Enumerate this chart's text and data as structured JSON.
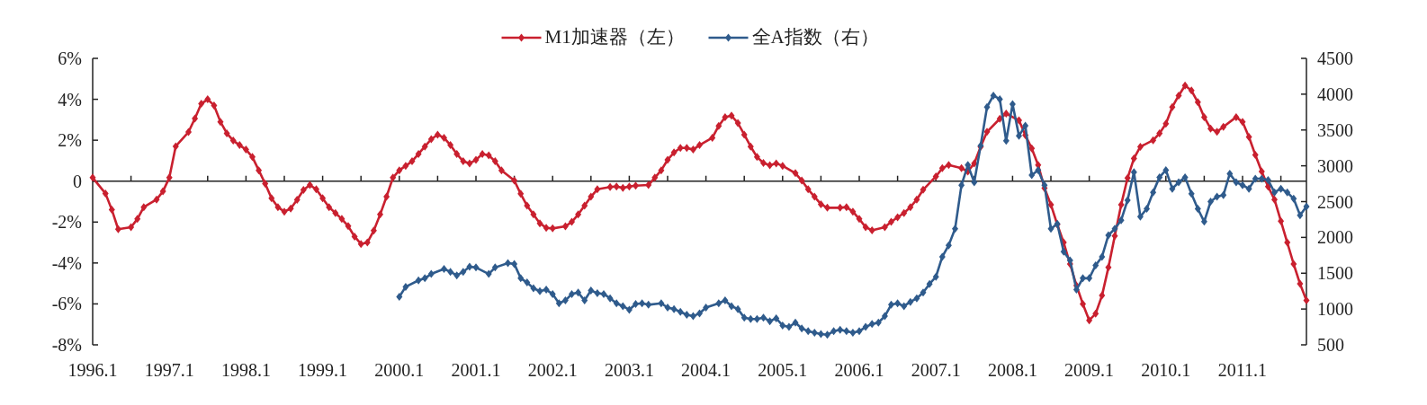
{
  "chart_data": {
    "type": "line",
    "legend": "top",
    "marker": "diamond",
    "line_style": "solid",
    "xlim": [
      "1996-01",
      "2011-11"
    ],
    "xticks": [
      {
        "value": "1996-01",
        "label": "1996.1"
      },
      {
        "value": "1996-07",
        "label": null
      },
      {
        "value": "1997-01",
        "label": "1997.1"
      },
      {
        "value": "1997-07",
        "label": null
      },
      {
        "value": "1998-01",
        "label": "1998.1"
      },
      {
        "value": "1998-07",
        "label": null
      },
      {
        "value": "1999-01",
        "label": "1999.1"
      },
      {
        "value": "1999-07",
        "label": null
      },
      {
        "value": "2000-01",
        "label": "2000.1"
      },
      {
        "value": "2000-07",
        "label": null
      },
      {
        "value": "2001-01",
        "label": "2001.1"
      },
      {
        "value": "2001-07",
        "label": null
      },
      {
        "value": "2002-01",
        "label": "2002.1"
      },
      {
        "value": "2002-07",
        "label": null
      },
      {
        "value": "2003-01",
        "label": "2003.1"
      },
      {
        "value": "2003-07",
        "label": null
      },
      {
        "value": "2004-01",
        "label": "2004.1"
      },
      {
        "value": "2004-07",
        "label": null
      },
      {
        "value": "2005-01",
        "label": "2005.1"
      },
      {
        "value": "2005-07",
        "label": null
      },
      {
        "value": "2006-01",
        "label": "2006.1"
      },
      {
        "value": "2006-07",
        "label": null
      },
      {
        "value": "2007-01",
        "label": "2007.1"
      },
      {
        "value": "2007-07",
        "label": null
      },
      {
        "value": "2008-01",
        "label": "2008.1"
      },
      {
        "value": "2008-07",
        "label": null
      },
      {
        "value": "2009-01",
        "label": "2009.1"
      },
      {
        "value": "2009-07",
        "label": null
      },
      {
        "value": "2010-01",
        "label": "2010.1"
      },
      {
        "value": "2010-07",
        "label": null
      },
      {
        "value": "2011-01",
        "label": "2011.1"
      },
      {
        "value": "2011-07",
        "label": null
      }
    ],
    "ylim": [
      -8,
      6
    ],
    "yticks": [
      {
        "value": -8,
        "label": "-8%"
      },
      {
        "value": -6,
        "label": "-6%"
      },
      {
        "value": -4,
        "label": "-4%"
      },
      {
        "value": -2,
        "label": "-2%"
      },
      0,
      {
        "value": 2,
        "label": "2%"
      },
      {
        "value": 4,
        "label": "4%"
      },
      {
        "value": 6,
        "label": "6%"
      }
    ],
    "y2lim": [
      500,
      4500
    ],
    "y2ticks": [
      500,
      1000,
      1500,
      2000,
      2500,
      3000,
      3500,
      4000,
      4500
    ],
    "series": [
      {
        "name": "M1加速器（左）",
        "color": "#c9202f",
        "x": [
          "1996-01",
          "1996-03",
          "1996-04",
          "1996-05",
          "1996-07",
          "1996-08",
          "1996-09",
          "1996-11",
          "1996-12",
          "1997-01",
          "1997-02",
          "1997-04",
          "1997-05",
          "1997-06",
          "1997-07",
          "1997-08",
          "1997-09",
          "1997-10",
          "1997-11",
          "1997-12",
          "1998-01",
          "1998-02",
          "1998-03",
          "1998-04",
          "1998-05",
          "1998-06",
          "1998-07",
          "1998-08",
          "1998-09",
          "1998-10",
          "1998-11",
          "1998-12",
          "1999-01",
          "1999-02",
          "1999-03",
          "1999-04",
          "1999-05",
          "1999-06",
          "1999-07",
          "1999-08",
          "1999-09",
          "1999-10",
          "1999-11",
          "1999-12",
          "2000-01",
          "2000-02",
          "2000-03",
          "2000-04",
          "2000-05",
          "2000-06",
          "2000-07",
          "2000-08",
          "2000-09",
          "2000-10",
          "2000-11",
          "2000-12",
          "2001-01",
          "2001-02",
          "2001-03",
          "2001-04",
          "2001-05",
          "2001-07",
          "2001-08",
          "2001-09",
          "2001-10",
          "2001-11",
          "2001-12",
          "2002-01",
          "2002-03",
          "2002-04",
          "2002-05",
          "2002-06",
          "2002-07",
          "2002-08",
          "2002-10",
          "2002-11",
          "2002-12",
          "2003-01",
          "2003-02",
          "2003-04",
          "2003-05",
          "2003-06",
          "2003-07",
          "2003-08",
          "2003-09",
          "2003-10",
          "2003-11",
          "2003-12",
          "2004-02",
          "2004-03",
          "2004-04",
          "2004-05",
          "2004-06",
          "2004-07",
          "2004-08",
          "2004-09",
          "2004-10",
          "2004-11",
          "2004-12",
          "2005-01",
          "2005-03",
          "2005-04",
          "2005-05",
          "2005-06",
          "2005-07",
          "2005-08",
          "2005-10",
          "2005-11",
          "2005-12",
          "2006-01",
          "2006-02",
          "2006-03",
          "2006-05",
          "2006-06",
          "2006-07",
          "2006-08",
          "2006-09",
          "2006-10",
          "2006-11",
          "2007-01",
          "2007-02",
          "2007-03",
          "2007-05",
          "2007-06",
          "2007-07",
          "2007-08",
          "2007-09",
          "2007-11",
          "2007-12",
          "2008-02",
          "2008-03",
          "2008-04",
          "2008-05",
          "2008-06",
          "2008-07",
          "2008-08",
          "2008-09",
          "2008-10",
          "2008-11",
          "2008-12",
          "2009-01",
          "2009-02",
          "2009-03",
          "2009-04",
          "2009-05",
          "2009-06",
          "2009-07",
          "2009-08",
          "2009-09",
          "2009-11",
          "2009-12",
          "2010-01",
          "2010-02",
          "2010-03",
          "2010-04",
          "2010-05",
          "2010-06",
          "2010-07",
          "2010-08",
          "2010-09",
          "2010-10",
          "2010-12",
          "2011-01",
          "2011-02",
          "2011-03",
          "2011-04",
          "2011-05",
          "2011-06",
          "2011-07",
          "2011-08",
          "2011-09",
          "2011-10",
          "2011-11"
        ],
        "values": [
          0.17,
          -0.6,
          -1.4,
          -2.35,
          -2.25,
          -1.85,
          -1.27,
          -0.9,
          -0.5,
          0.17,
          1.7,
          2.4,
          3.06,
          3.78,
          4.0,
          3.7,
          2.9,
          2.34,
          1.98,
          1.76,
          1.54,
          1.18,
          0.53,
          -0.12,
          -0.84,
          -1.27,
          -1.49,
          -1.34,
          -0.91,
          -0.43,
          -0.19,
          -0.4,
          -0.84,
          -1.27,
          -1.56,
          -1.85,
          -2.2,
          -2.71,
          -3.07,
          -3.0,
          -2.42,
          -1.63,
          -0.76,
          0.17,
          0.53,
          0.75,
          0.97,
          1.33,
          1.69,
          2.05,
          2.27,
          2.12,
          1.76,
          1.33,
          0.97,
          0.87,
          1.04,
          1.33,
          1.26,
          0.97,
          0.53,
          0.03,
          -0.62,
          -1.2,
          -1.63,
          -2.06,
          -2.28,
          -2.31,
          -2.21,
          -1.99,
          -1.63,
          -1.2,
          -0.76,
          -0.4,
          -0.29,
          -0.26,
          -0.33,
          -0.26,
          -0.22,
          -0.19,
          0.17,
          0.53,
          1.04,
          1.4,
          1.62,
          1.62,
          1.54,
          1.76,
          2.12,
          2.7,
          3.13,
          3.2,
          2.84,
          2.27,
          1.69,
          1.18,
          0.89,
          0.78,
          0.87,
          0.75,
          0.39,
          0.03,
          -0.4,
          -0.76,
          -1.13,
          -1.3,
          -1.3,
          -1.27,
          -1.49,
          -1.85,
          -2.25,
          -2.4,
          -2.25,
          -1.99,
          -1.77,
          -1.56,
          -1.27,
          -0.9,
          -0.42,
          0.23,
          0.63,
          0.79,
          0.63,
          0.47,
          0.87,
          1.68,
          2.41,
          3.05,
          3.3,
          2.97,
          2.25,
          1.6,
          0.79,
          -0.34,
          -1.15,
          -2.12,
          -3.0,
          -4.05,
          -5.1,
          -6.0,
          -6.8,
          -6.48,
          -5.59,
          -4.22,
          -2.68,
          -1.15,
          0.15,
          1.11,
          1.68,
          2.0,
          2.33,
          2.81,
          3.62,
          4.18,
          4.67,
          4.43,
          3.86,
          3.13,
          2.57,
          2.41,
          2.65,
          3.13,
          2.89,
          2.16,
          1.28,
          0.47,
          -0.26,
          -0.9,
          -1.95,
          -3.0,
          -4.05,
          -5.02,
          -5.83
        ]
      },
      {
        "name": "全A指数（右）",
        "color": "#2f5b8c",
        "axis": "y2",
        "x": [
          "2000-01",
          "2000-02",
          "2000-04",
          "2000-05",
          "2000-06",
          "2000-08",
          "2000-09",
          "2000-10",
          "2000-11",
          "2000-12",
          "2001-01",
          "2001-03",
          "2001-04",
          "2001-06",
          "2001-07",
          "2001-08",
          "2001-09",
          "2001-10",
          "2001-11",
          "2001-12",
          "2002-01",
          "2002-02",
          "2002-03",
          "2002-04",
          "2002-05",
          "2002-06",
          "2002-07",
          "2002-08",
          "2002-09",
          "2002-10",
          "2002-11",
          "2002-12",
          "2003-01",
          "2003-02",
          "2003-03",
          "2003-04",
          "2003-06",
          "2003-07",
          "2003-08",
          "2003-09",
          "2003-10",
          "2003-11",
          "2003-12",
          "2004-01",
          "2004-03",
          "2004-04",
          "2004-05",
          "2004-06",
          "2004-07",
          "2004-08",
          "2004-09",
          "2004-10",
          "2004-11",
          "2004-12",
          "2005-01",
          "2005-02",
          "2005-03",
          "2005-04",
          "2005-05",
          "2005-06",
          "2005-07",
          "2005-08",
          "2005-09",
          "2005-10",
          "2005-11",
          "2005-12",
          "2006-01",
          "2006-02",
          "2006-03",
          "2006-04",
          "2006-05",
          "2006-06",
          "2006-07",
          "2006-08",
          "2006-09",
          "2006-10",
          "2006-11",
          "2006-12",
          "2007-01",
          "2007-02",
          "2007-03",
          "2007-04",
          "2007-05",
          "2007-06",
          "2007-07",
          "2007-08",
          "2007-09",
          "2007-10",
          "2007-11",
          "2007-12",
          "2008-01",
          "2008-02",
          "2008-03",
          "2008-04",
          "2008-05",
          "2008-06",
          "2008-07",
          "2008-08",
          "2008-09",
          "2008-10",
          "2008-11",
          "2008-12",
          "2009-01",
          "2009-02",
          "2009-03",
          "2009-04",
          "2009-05",
          "2009-06",
          "2009-07",
          "2009-08",
          "2009-09",
          "2009-10",
          "2009-11",
          "2009-12",
          "2010-01",
          "2010-02",
          "2010-03",
          "2010-04",
          "2010-05",
          "2010-06",
          "2010-07",
          "2010-08",
          "2010-09",
          "2010-10",
          "2010-11",
          "2010-12",
          "2011-01",
          "2011-02",
          "2011-03",
          "2011-04",
          "2011-05",
          "2011-06",
          "2011-07",
          "2011-08",
          "2011-09",
          "2011-10",
          "2011-11"
        ],
        "values": [
          1170,
          1310,
          1400,
          1430,
          1490,
          1560,
          1520,
          1470,
          1520,
          1590,
          1580,
          1490,
          1580,
          1640,
          1630,
          1430,
          1370,
          1290,
          1250,
          1270,
          1210,
          1080,
          1120,
          1210,
          1230,
          1120,
          1260,
          1220,
          1210,
          1150,
          1080,
          1040,
          990,
          1070,
          1080,
          1060,
          1080,
          1020,
          1000,
          960,
          920,
          900,
          940,
          1020,
          1080,
          1120,
          1040,
          1000,
          880,
          860,
          860,
          880,
          830,
          870,
          770,
          750,
          810,
          730,
          690,
          670,
          650,
          640,
          690,
          710,
          690,
          670,
          690,
          750,
          790,
          810,
          900,
          1060,
          1080,
          1040,
          1100,
          1150,
          1230,
          1350,
          1450,
          1730,
          1890,
          2120,
          2730,
          3010,
          2770,
          3280,
          3820,
          3980,
          3930,
          3350,
          3860,
          3420,
          3560,
          2870,
          2940,
          2730,
          2120,
          2190,
          1800,
          1680,
          1270,
          1430,
          1430,
          1610,
          1730,
          2030,
          2120,
          2240,
          2520,
          2910,
          2290,
          2400,
          2630,
          2840,
          2940,
          2680,
          2770,
          2840,
          2610,
          2400,
          2220,
          2500,
          2570,
          2590,
          2890,
          2770,
          2730,
          2680,
          2820,
          2820,
          2800,
          2630,
          2680,
          2630,
          2540,
          2310,
          2430
        ]
      }
    ]
  }
}
